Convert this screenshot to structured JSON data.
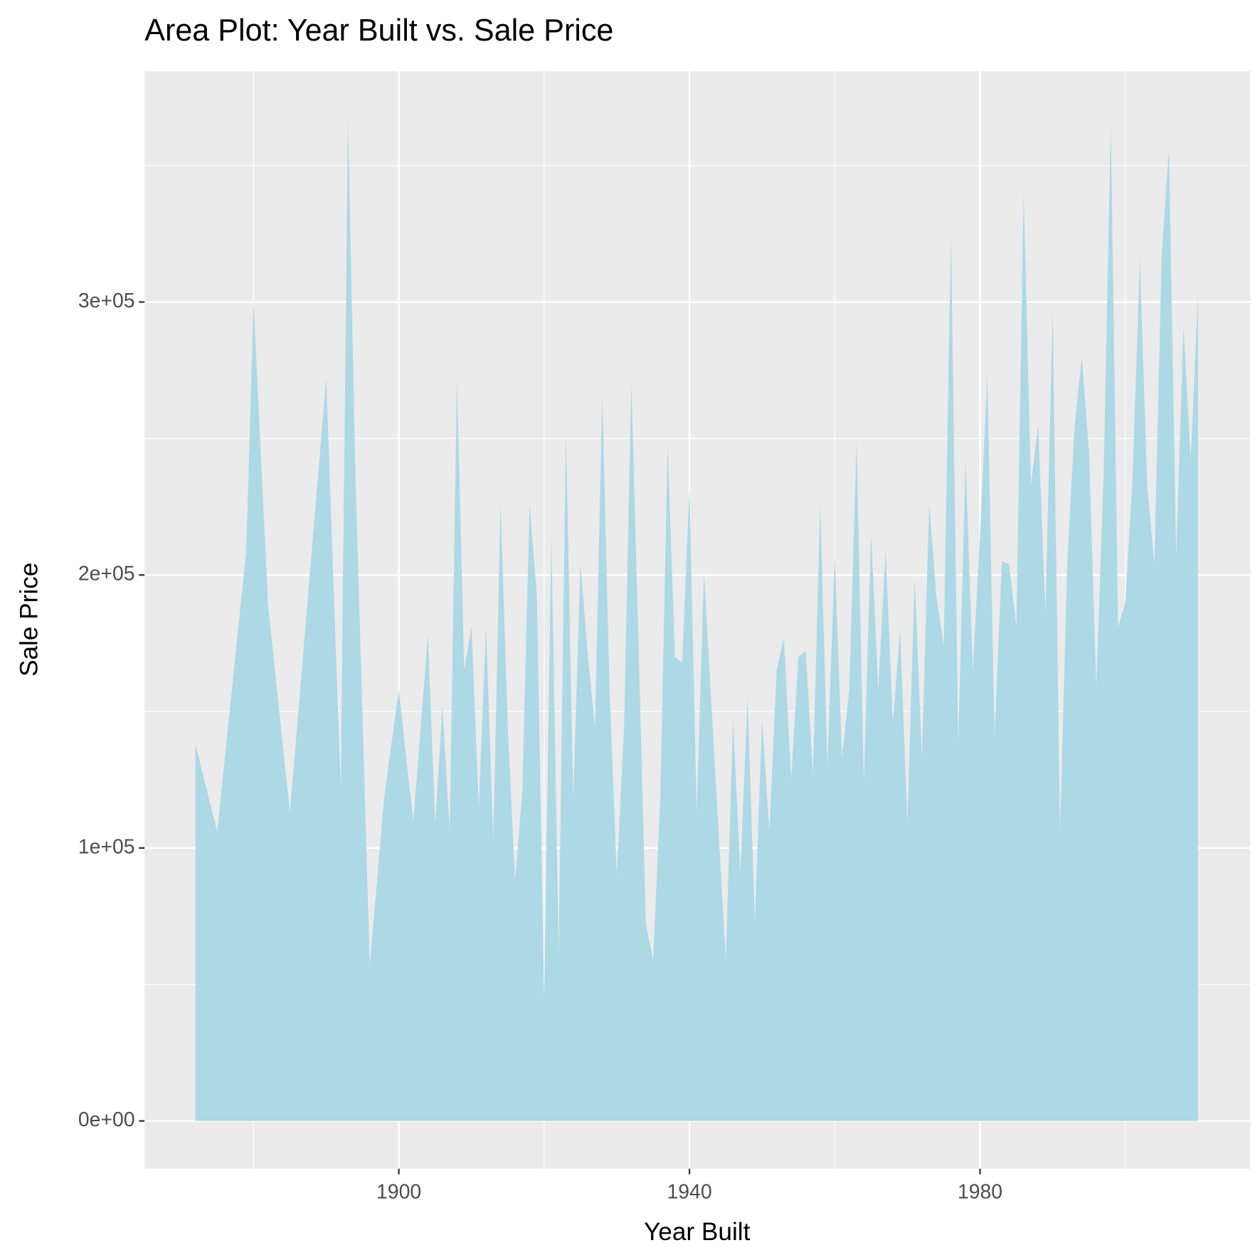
{
  "chart_data": {
    "type": "area",
    "title": "Area Plot: Year Built vs. Sale Price",
    "x_label": "Year Built",
    "y_label": "Sale Price",
    "color": "#add8e6",
    "grid": true,
    "xlim": [
      1865,
      2017.2
    ],
    "ylim": [
      -17500,
      384600
    ],
    "xticks": [
      1900,
      1940,
      1980
    ],
    "yticks": [
      {
        "value": 0,
        "label": "0e+00"
      },
      {
        "value": 100000,
        "label": "1e+05"
      },
      {
        "value": 200000,
        "label": "2e+05"
      },
      {
        "value": 300000,
        "label": "3e+05"
      }
    ],
    "x": [
      1872,
      1875,
      1879,
      1880,
      1882,
      1885,
      1890,
      1892,
      1893,
      1894,
      1896,
      1898,
      1900,
      1901,
      1902,
      1904,
      1905,
      1906,
      1907,
      1908,
      1909,
      1910,
      1911,
      1912,
      1913,
      1914,
      1915,
      1916,
      1917,
      1918,
      1919,
      1920,
      1921,
      1922,
      1923,
      1924,
      1925,
      1926,
      1927,
      1928,
      1929,
      1930,
      1931,
      1932,
      1933,
      1934,
      1935,
      1936,
      1937,
      1938,
      1939,
      1940,
      1941,
      1942,
      1945,
      1946,
      1947,
      1948,
      1949,
      1950,
      1951,
      1952,
      1953,
      1954,
      1955,
      1956,
      1957,
      1958,
      1959,
      1960,
      1961,
      1962,
      1963,
      1964,
      1965,
      1966,
      1967,
      1968,
      1969,
      1970,
      1971,
      1972,
      1973,
      1974,
      1975,
      1976,
      1977,
      1978,
      1979,
      1980,
      1981,
      1982,
      1983,
      1984,
      1985,
      1986,
      1987,
      1988,
      1989,
      1990,
      1991,
      1992,
      1993,
      1994,
      1995,
      1996,
      1997,
      1998,
      1999,
      2000,
      2001,
      2002,
      2003,
      2004,
      2005,
      2006,
      2007,
      2008,
      2009,
      2010
    ],
    "values": [
      138000,
      106000,
      209000,
      300000,
      189000,
      113000,
      272000,
      122000,
      367000,
      239000,
      57000,
      119000,
      158000,
      133000,
      110000,
      178000,
      109000,
      152000,
      106000,
      272000,
      165000,
      181000,
      115000,
      181000,
      103000,
      226000,
      144000,
      88000,
      121000,
      226000,
      192000,
      45000,
      214000,
      62000,
      252000,
      118000,
      204000,
      171000,
      144000,
      266000,
      158000,
      90000,
      144000,
      270000,
      174000,
      72000,
      59000,
      119000,
      248000,
      170000,
      168000,
      232000,
      113000,
      201000,
      59000,
      147000,
      91000,
      155000,
      73000,
      147000,
      106000,
      165000,
      177000,
      125000,
      170000,
      172000,
      127000,
      226000,
      130000,
      207000,
      133000,
      158000,
      249000,
      124000,
      215000,
      158000,
      209000,
      146000,
      180000,
      109000,
      199000,
      133000,
      226000,
      192000,
      174000,
      325000,
      138000,
      242000,
      165000,
      215000,
      273000,
      141000,
      205000,
      204000,
      181000,
      340000,
      233000,
      255000,
      186000,
      297000,
      106000,
      204000,
      254000,
      280000,
      245000,
      159000,
      236000,
      365000,
      181000,
      190000,
      236000,
      316000,
      233000,
      204000,
      317000,
      356000,
      207000,
      291000,
      242000,
      303000
    ]
  }
}
